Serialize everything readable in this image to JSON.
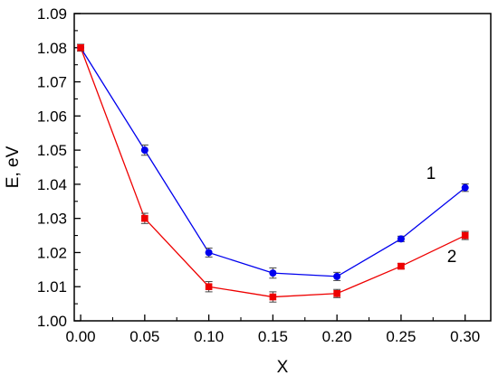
{
  "chart_data": {
    "type": "line",
    "title": "",
    "xlabel": "X",
    "ylabel": "E, eV",
    "xlim": [
      -0.005,
      0.32
    ],
    "ylim": [
      1.0,
      1.09
    ],
    "xticks": [
      "0.00",
      "0.05",
      "0.10",
      "0.15",
      "0.20",
      "0.25",
      "0.30"
    ],
    "yticks": [
      "1.00",
      "1.01",
      "1.02",
      "1.03",
      "1.04",
      "1.05",
      "1.06",
      "1.07",
      "1.08",
      "1.09"
    ],
    "grid": false,
    "legend": "none",
    "series": [
      {
        "name": "1",
        "color": "#0000ee",
        "marker": "circle",
        "x": [
          0.0,
          0.05,
          0.1,
          0.15,
          0.2,
          0.25,
          0.3
        ],
        "y": [
          1.08,
          1.05,
          1.02,
          1.014,
          1.013,
          1.024,
          1.039
        ],
        "err": [
          0.001,
          0.0015,
          0.0013,
          0.0015,
          0.0012,
          0.0008,
          0.0011
        ]
      },
      {
        "name": "2",
        "color": "#ee0000",
        "marker": "square",
        "x": [
          0.0,
          0.05,
          0.1,
          0.15,
          0.2,
          0.25,
          0.3
        ],
        "y": [
          1.08,
          1.03,
          1.01,
          1.007,
          1.008,
          1.016,
          1.025
        ],
        "err": [
          0.001,
          0.0015,
          0.0015,
          0.0015,
          0.0012,
          0.0008,
          0.0012
        ]
      }
    ]
  }
}
